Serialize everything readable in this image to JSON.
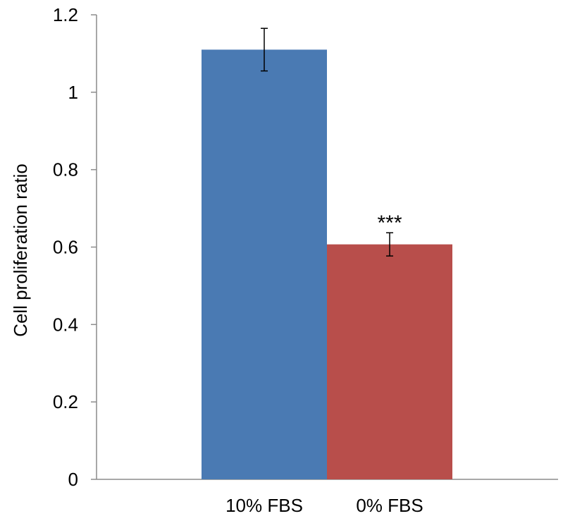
{
  "chart_data": {
    "type": "bar",
    "ylabel": "Cell proliferation ratio",
    "xlabel": "",
    "ylim": [
      0,
      1.2
    ],
    "yticks": [
      0,
      0.2,
      0.4,
      0.6,
      0.8,
      1,
      1.2
    ],
    "ytick_labels": [
      "0",
      "0.2",
      "0.4",
      "0.6",
      "0.8",
      "1",
      "1.2"
    ],
    "grid": false,
    "legend": "none",
    "categories": [
      "10% FBS",
      "0% FBS"
    ],
    "values": [
      1.11,
      0.607
    ],
    "errors": [
      0.055,
      0.03
    ],
    "colors": [
      "#4a7ab3",
      "#b84e4b"
    ],
    "annotations": [
      {
        "category_index": 1,
        "text": "***"
      }
    ]
  }
}
